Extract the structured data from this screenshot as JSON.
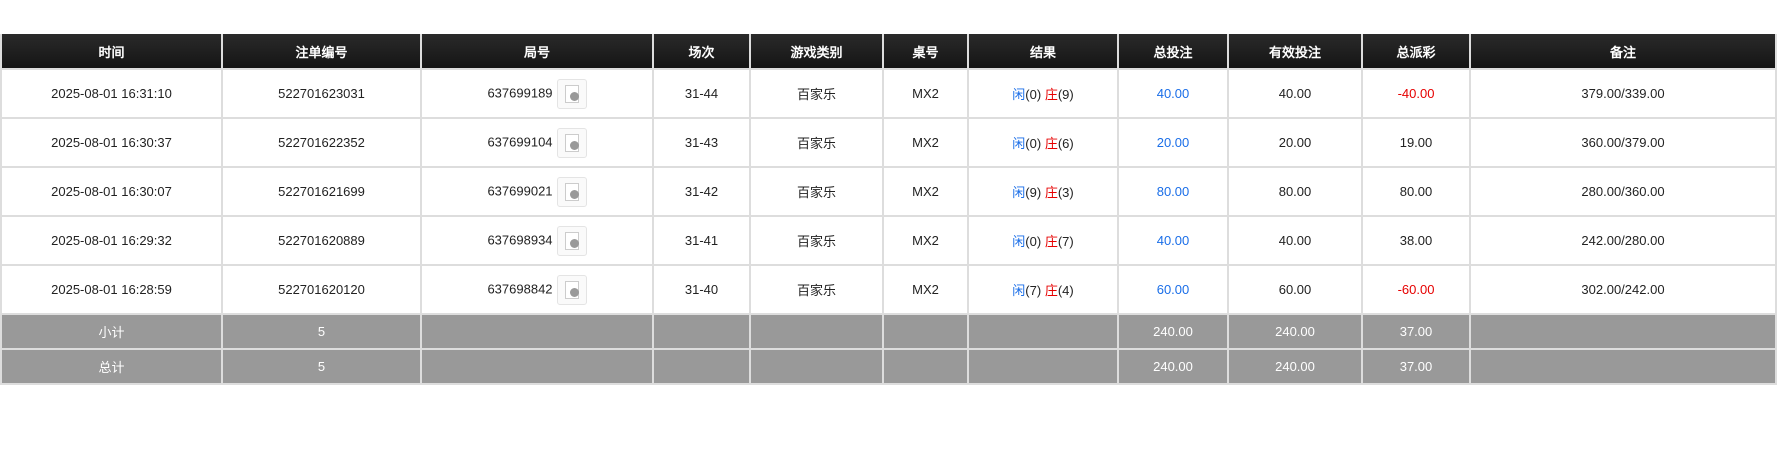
{
  "headers": [
    "时间",
    "注单编号",
    "局号",
    "场次",
    "游戏类别",
    "桌号",
    "结果",
    "总投注",
    "有效投注",
    "总派彩",
    "备注"
  ],
  "rows": [
    {
      "time": "2025-08-01 16:31:10",
      "bet_id": "522701623031",
      "round": "637699189",
      "session": "31-44",
      "game": "百家乐",
      "table": "MX2",
      "player": "闲",
      "player_pts": "(0)",
      "banker": "庄",
      "banker_pts": "(9)",
      "total_bet": "40.00",
      "valid_bet": "40.00",
      "payout": "-40.00",
      "payout_negative": true,
      "note": "379.00/339.00"
    },
    {
      "time": "2025-08-01 16:30:37",
      "bet_id": "522701622352",
      "round": "637699104",
      "session": "31-43",
      "game": "百家乐",
      "table": "MX2",
      "player": "闲",
      "player_pts": "(0)",
      "banker": "庄",
      "banker_pts": "(6)",
      "total_bet": "20.00",
      "valid_bet": "20.00",
      "payout": "19.00",
      "payout_negative": false,
      "note": "360.00/379.00"
    },
    {
      "time": "2025-08-01 16:30:07",
      "bet_id": "522701621699",
      "round": "637699021",
      "session": "31-42",
      "game": "百家乐",
      "table": "MX2",
      "player": "闲",
      "player_pts": "(9)",
      "banker": "庄",
      "banker_pts": "(3)",
      "total_bet": "80.00",
      "valid_bet": "80.00",
      "payout": "80.00",
      "payout_negative": false,
      "note": "280.00/360.00"
    },
    {
      "time": "2025-08-01 16:29:32",
      "bet_id": "522701620889",
      "round": "637698934",
      "session": "31-41",
      "game": "百家乐",
      "table": "MX2",
      "player": "闲",
      "player_pts": "(0)",
      "banker": "庄",
      "banker_pts": "(7)",
      "total_bet": "40.00",
      "valid_bet": "40.00",
      "payout": "38.00",
      "payout_negative": false,
      "note": "242.00/280.00"
    },
    {
      "time": "2025-08-01 16:28:59",
      "bet_id": "522701620120",
      "round": "637698842",
      "session": "31-40",
      "game": "百家乐",
      "table": "MX2",
      "player": "闲",
      "player_pts": "(7)",
      "banker": "庄",
      "banker_pts": "(4)",
      "total_bet": "60.00",
      "valid_bet": "60.00",
      "payout": "-60.00",
      "payout_negative": true,
      "note": "302.00/242.00"
    }
  ],
  "summary": [
    {
      "label": "小计",
      "count": "5",
      "total_bet": "240.00",
      "valid_bet": "240.00",
      "payout": "37.00"
    },
    {
      "label": "总计",
      "count": "5",
      "total_bet": "240.00",
      "valid_bet": "240.00",
      "payout": "37.00"
    }
  ],
  "colors": {
    "header_bg": "#1b1b1b",
    "summary_bg": "#999999",
    "blue": "#1a6ee8",
    "red": "#e60000"
  },
  "icons": {
    "round_detail": "video-file-icon"
  }
}
